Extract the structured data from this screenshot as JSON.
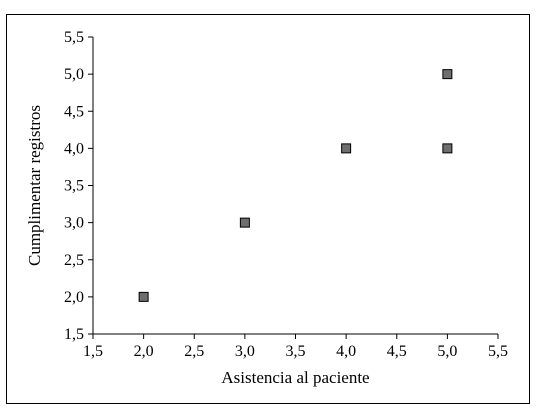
{
  "chart_data": {
    "type": "scatter",
    "xlabel": "Asistencia al paciente",
    "ylabel": "Cumplimentar registros",
    "xlim": [
      1.5,
      5.5
    ],
    "ylim": [
      1.5,
      5.5
    ],
    "xticks": [
      1.5,
      2.0,
      2.5,
      3.0,
      3.5,
      4.0,
      4.5,
      5.0,
      5.5
    ],
    "xtick_labels": [
      "1,5",
      "2,0",
      "2,5",
      "3,0",
      "3,5",
      "4,0",
      "4,5",
      "5,0",
      "5,5"
    ],
    "yticks": [
      1.5,
      2.0,
      2.5,
      3.0,
      3.5,
      4.0,
      4.5,
      5.0,
      5.5
    ],
    "ytick_labels": [
      "1,5",
      "2,0",
      "2,5",
      "3,0",
      "3,5",
      "4,0",
      "4,5",
      "5,0",
      "5,5"
    ],
    "grid": false,
    "marker": "square",
    "marker_color": "#6e6e6e",
    "points": [
      {
        "x": 2.0,
        "y": 2.0
      },
      {
        "x": 3.0,
        "y": 3.0
      },
      {
        "x": 4.0,
        "y": 4.0
      },
      {
        "x": 5.0,
        "y": 4.0
      },
      {
        "x": 5.0,
        "y": 5.0
      }
    ]
  }
}
